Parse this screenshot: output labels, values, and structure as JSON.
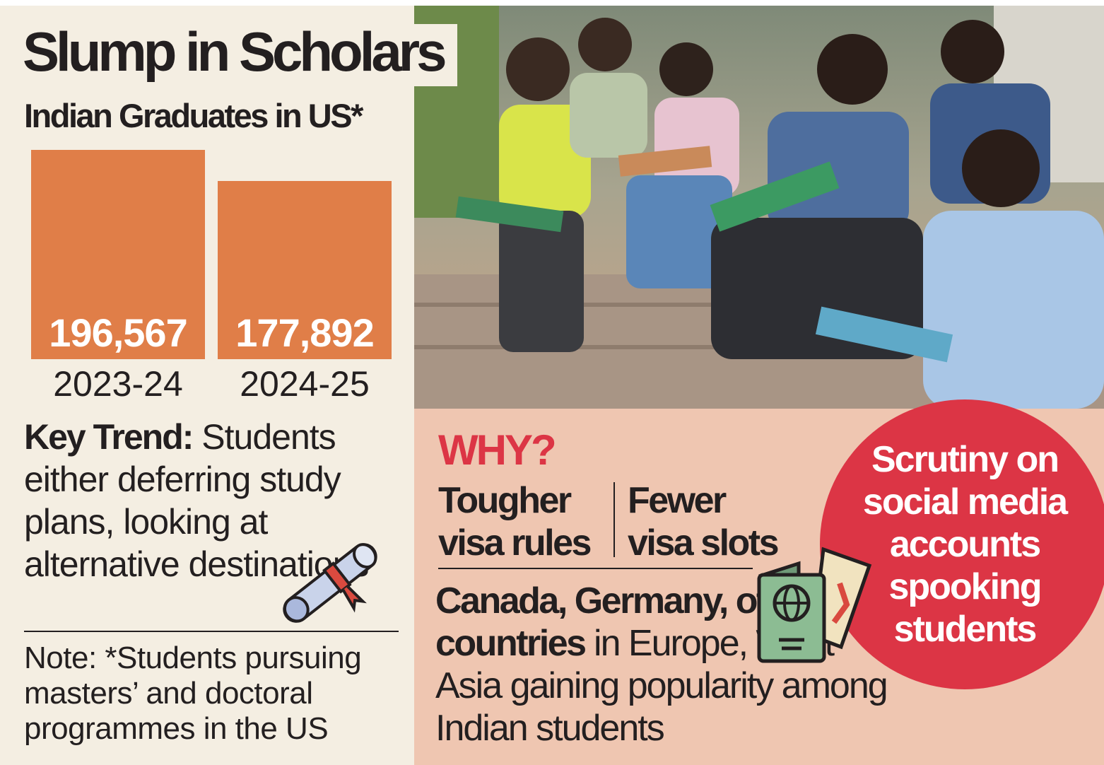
{
  "title": "Slump in Scholars",
  "subtitle": "Indian Graduates in US*",
  "chart_data": {
    "type": "bar",
    "title": "Indian Graduates in US*",
    "categories": [
      "2023-24",
      "2024-25"
    ],
    "values": [
      196567,
      177892
    ],
    "value_labels": [
      "196,567",
      "177,892"
    ],
    "bar_color": "#e07e48",
    "grid": false
  },
  "key_trend": {
    "label": "Key Trend:",
    "text": " Students either deferring study plans, looking at alternative destinations"
  },
  "note": "Note: *Students pursuing masters’ and doctoral programmes in the US",
  "why": {
    "heading": "WHY?",
    "reasons": [
      "Tougher visa rules",
      "Fewer visa slots"
    ],
    "destinations_bold": "Canada, Germany, other countries",
    "destinations_rest": " in Europe, West Asia gaining popularity among Indian students",
    "callout": "Scrutiny on social media accounts spooking students"
  },
  "colors": {
    "accent_red": "#dc3545",
    "left_bg": "#f4eee2",
    "bottom_bg": "#efc6b1"
  },
  "icons": [
    "diploma-scroll-icon",
    "passport-icon",
    "boarding-pass-icon"
  ]
}
